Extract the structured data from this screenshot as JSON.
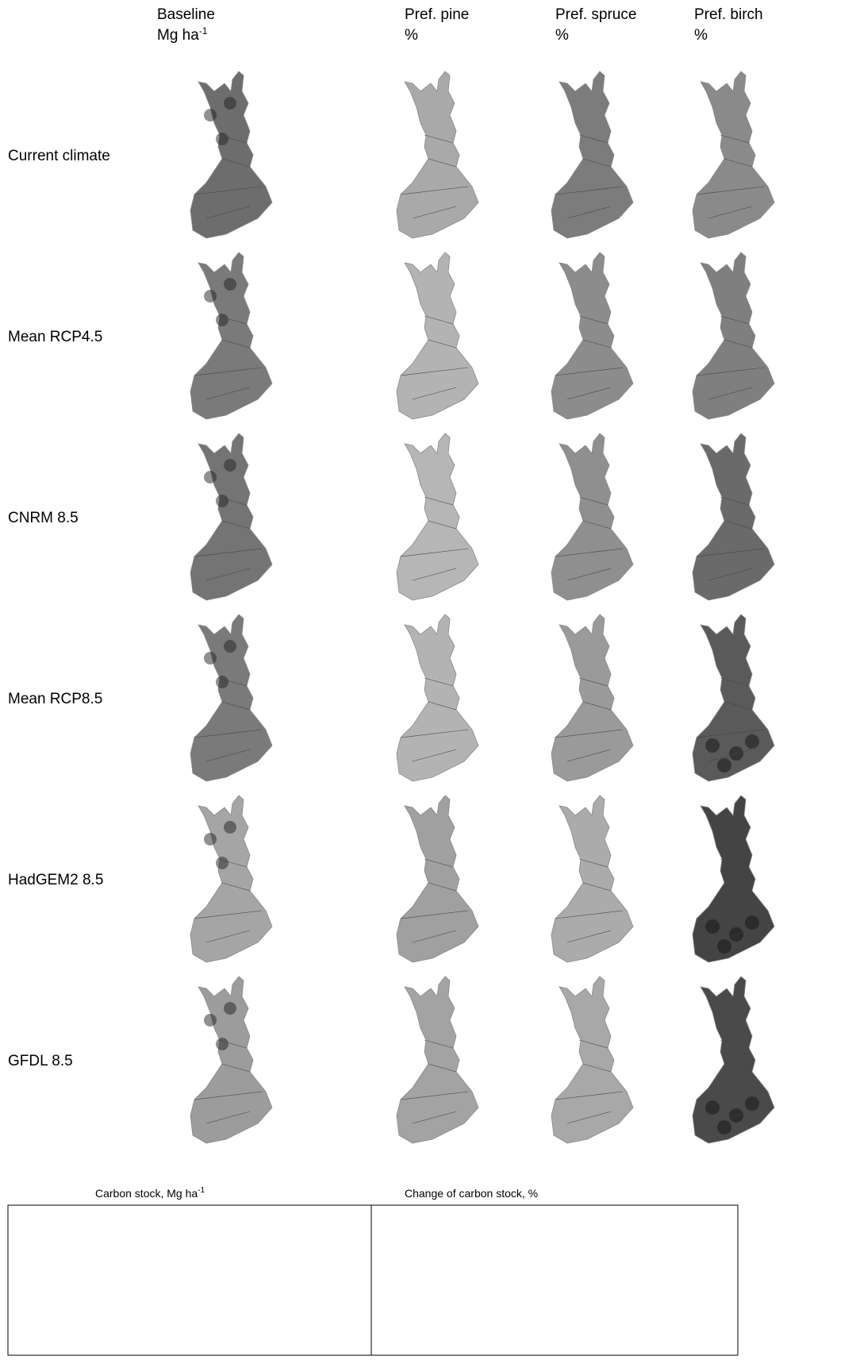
{
  "columns": [
    {
      "title": "Baseline",
      "unit": "Mg ha",
      "unit_sup": "-1"
    },
    {
      "title": "Pref. pine",
      "unit": "%"
    },
    {
      "title": "Pref. spruce",
      "unit": "%"
    },
    {
      "title": "Pref. birch",
      "unit": "%"
    }
  ],
  "rows": [
    "Current climate",
    "Mean RCP4.5",
    "CNRM 8.5",
    "Mean RCP8.5",
    "HadGEM2 8.5",
    "GFDL 8.5"
  ],
  "legend": {
    "carbon_stock": {
      "title": "Carbon stock, Mg ha",
      "title_sup": "-1"
    },
    "change": {
      "title": "Change of carbon stock, %"
    }
  }
}
